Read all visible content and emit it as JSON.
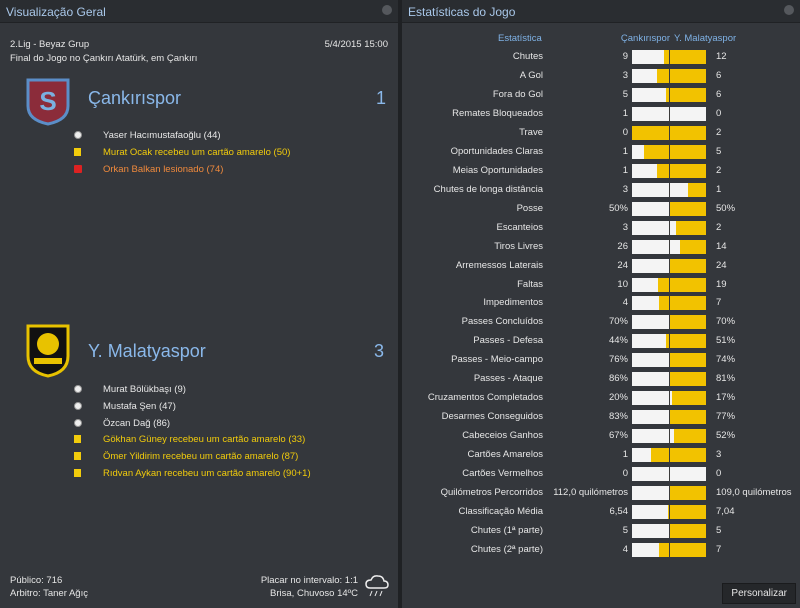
{
  "overview": {
    "title": "Visualização Geral",
    "competition": "2.Lig - Beyaz Grup",
    "date": "5/4/2015 15:00",
    "venue": "Final do Jogo no Çankırı Atatürk, em Çankırı",
    "home": {
      "name": "Çankırıspor",
      "score": "1",
      "events": [
        {
          "text": "Yaser Hacımustafaoğlu (44)",
          "icon": "goal",
          "color": "#e8e8e8"
        },
        {
          "text": "Murat Ocak recebeu um cartão amarelo (50)",
          "icon": "yellow-card",
          "color": "#f2cc0c"
        },
        {
          "text": "Orkan Balkan lesionado (74)",
          "icon": "injury",
          "color": "#f08a3c"
        }
      ]
    },
    "away": {
      "name": "Y. Malatyaspor",
      "score": "3",
      "events": [
        {
          "text": "Murat Bölükbaşı (9)",
          "icon": "goal",
          "color": "#e8e8e8"
        },
        {
          "text": "Mustafa Şen (47)",
          "icon": "goal",
          "color": "#e8e8e8"
        },
        {
          "text": "Özcan Dağ (86)",
          "icon": "goal",
          "color": "#e8e8e8"
        },
        {
          "text": "Gökhan Güney recebeu um cartão amarelo (33)",
          "icon": "yellow-card",
          "color": "#f2cc0c"
        },
        {
          "text": "Ömer Yildirim recebeu um cartão amarelo (87)",
          "icon": "yellow-card",
          "color": "#f2cc0c"
        },
        {
          "text": "Rıdvan Aykan recebeu um cartão amarelo (90+1)",
          "icon": "yellow-card",
          "color": "#f2cc0c"
        }
      ]
    },
    "attendance": "Público: 716",
    "referee": "Arbitro: Taner Ağıç",
    "halftime": "Placar no intervalo: 1:1",
    "weather": "Brisa, Chuvoso 14ºC"
  },
  "stats": {
    "title": "Estatísticas do Jogo",
    "header": {
      "label": "Estatística",
      "home": "Çankırıspor",
      "away": "Y. Malatyaspor"
    },
    "rows": [
      {
        "label": "Chutes",
        "home": "9",
        "away": "12"
      },
      {
        "label": "A Gol",
        "home": "3",
        "away": "6"
      },
      {
        "label": "Fora do Gol",
        "home": "5",
        "away": "6"
      },
      {
        "label": "Remates Bloqueados",
        "home": "1",
        "away": "0"
      },
      {
        "label": "Trave",
        "home": "0",
        "away": "2"
      },
      {
        "label": "Oportunidades Claras",
        "home": "1",
        "away": "5"
      },
      {
        "label": "Meias Oportunidades",
        "home": "1",
        "away": "2"
      },
      {
        "label": "Chutes de longa distância",
        "home": "3",
        "away": "1"
      },
      {
        "label": "Posse",
        "home": "50%",
        "away": "50%"
      },
      {
        "label": "Escanteios",
        "home": "3",
        "away": "2"
      },
      {
        "label": "Tiros Livres",
        "home": "26",
        "away": "14"
      },
      {
        "label": "Arremessos Laterais",
        "home": "24",
        "away": "24"
      },
      {
        "label": "Faltas",
        "home": "10",
        "away": "19"
      },
      {
        "label": "Impedimentos",
        "home": "4",
        "away": "7"
      },
      {
        "label": "Passes Concluídos",
        "home": "70%",
        "away": "70%"
      },
      {
        "label": "Passes - Defesa",
        "home": "44%",
        "away": "51%"
      },
      {
        "label": "Passes - Meio-campo",
        "home": "76%",
        "away": "74%"
      },
      {
        "label": "Passes - Ataque",
        "home": "86%",
        "away": "81%"
      },
      {
        "label": "Cruzamentos Completados",
        "home": "20%",
        "away": "17%"
      },
      {
        "label": "Desarmes Conseguidos",
        "home": "83%",
        "away": "77%"
      },
      {
        "label": "Cabeceios Ganhos",
        "home": "67%",
        "away": "52%"
      },
      {
        "label": "Cartões Amarelos",
        "home": "1",
        "away": "3"
      },
      {
        "label": "Cartões Vermelhos",
        "home": "0",
        "away": "0"
      },
      {
        "label": "Quilómetros Percorridos",
        "home": "112,0 quilómetros",
        "away": "109,0 quilómetros"
      },
      {
        "label": "Classificação Média",
        "home": "6,54",
        "away": "7,04"
      },
      {
        "label": "Chutes (1ª parte)",
        "home": "5",
        "away": "5"
      },
      {
        "label": "Chutes (2ª parte)",
        "home": "4",
        "away": "7"
      }
    ],
    "button": "Personalizar"
  }
}
